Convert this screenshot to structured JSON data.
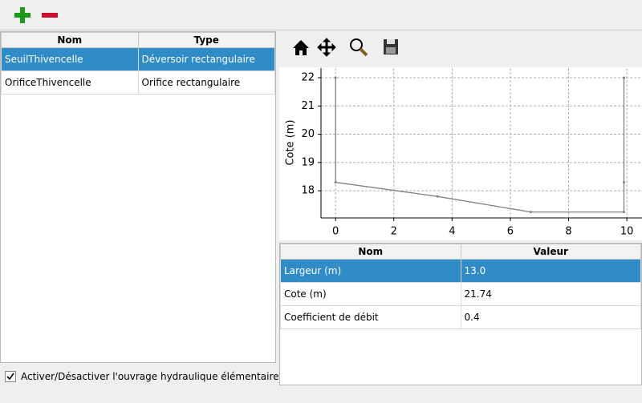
{
  "left_table": {
    "headers": [
      "Nom",
      "Type"
    ],
    "rows": [
      [
        "SeuilThivencelle",
        "Déversoir rectangulaire"
      ],
      [
        "OrificeThivencelle",
        "Orifice rectangulaire"
      ]
    ],
    "selected_row": 0
  },
  "checkbox": {
    "label": "Activer/Désactiver l'ouvrage hydraulique élémentaire",
    "checked": true
  },
  "chart_data": {
    "type": "line",
    "ylabel": "Cote (m)",
    "x": [
      0,
      0,
      3.5,
      6.7,
      9.9,
      9.9,
      9.9
    ],
    "values": [
      22,
      18.3,
      17.8,
      17.25,
      17.25,
      18.3,
      22
    ],
    "color": "#808080",
    "xlim": [
      -0.5,
      10.52
    ],
    "ylim": [
      17.04,
      22.34
    ],
    "xticks": [
      0,
      2,
      4,
      6,
      8,
      10
    ],
    "yticks": [
      18,
      19,
      20,
      21,
      22
    ],
    "grid": true
  },
  "param_table": {
    "headers": [
      "Nom",
      "Valeur"
    ],
    "rows": [
      [
        "Largeur (m)",
        "13.0"
      ],
      [
        "Cote (m)",
        "21.74"
      ],
      [
        "Coefficient de débit",
        "0.4"
      ]
    ],
    "selected_row": 0
  }
}
